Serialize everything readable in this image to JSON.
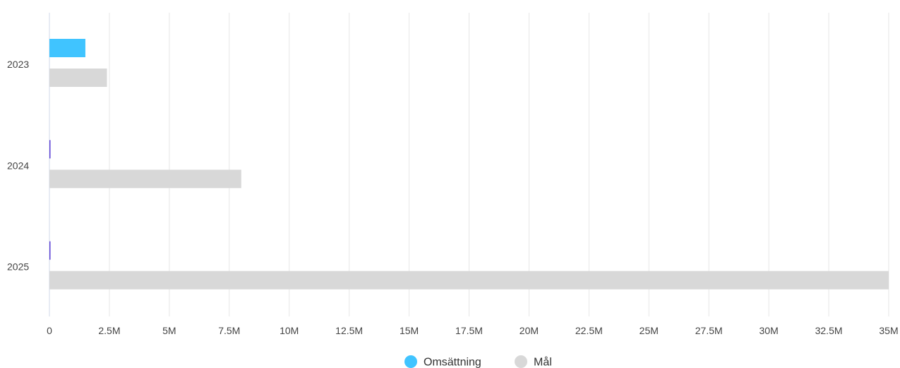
{
  "chart_data": {
    "type": "bar",
    "orientation": "horizontal",
    "categories": [
      "2023",
      "2024",
      "2025"
    ],
    "series": [
      {
        "name": "Omsättning",
        "color": "#40c4ff",
        "values": [
          1.5,
          0.02,
          0.02
        ]
      },
      {
        "name": "Mål",
        "color": "#d8d8d8",
        "values": [
          2.4,
          8,
          35
        ]
      }
    ],
    "x_ticks": [
      "0",
      "2.5M",
      "5M",
      "7.5M",
      "10M",
      "12.5M",
      "15M",
      "17.5M",
      "20M",
      "22.5M",
      "25M",
      "27.5M",
      "30M",
      "32.5M",
      "35M"
    ],
    "xlim": [
      0,
      35
    ],
    "x_unit": "M",
    "grid": true,
    "legend_position": "bottom",
    "tiny_bar_color": "#5b3fd6",
    "gridline_color": "#e6e6e6",
    "axis_color": "#cfd8ea"
  }
}
